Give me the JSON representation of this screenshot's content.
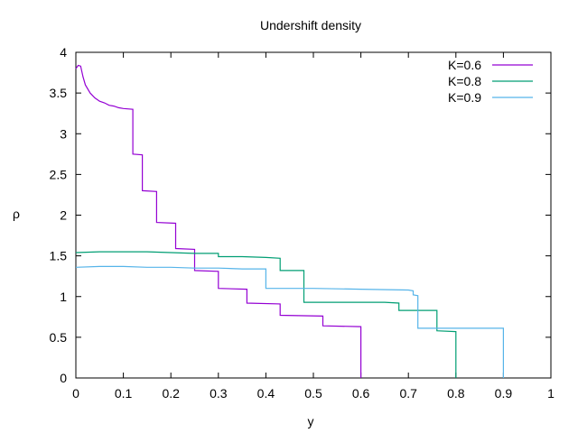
{
  "chart_data": {
    "type": "line",
    "title": "Undershift density",
    "xlabel": "y",
    "ylabel": "ρ",
    "xlim": [
      0,
      1
    ],
    "ylim": [
      0,
      4
    ],
    "xticks": [
      "0",
      "0.1",
      "0.2",
      "0.3",
      "0.4",
      "0.5",
      "0.6",
      "0.7",
      "0.8",
      "0.9",
      "1"
    ],
    "yticks": [
      "0",
      "0.5",
      "1",
      "1.5",
      "2",
      "2.5",
      "3",
      "3.5",
      "4"
    ],
    "grid": false,
    "legend_position": "top-right",
    "series": [
      {
        "name": "K=0.6",
        "color": "#9400d3",
        "points": [
          [
            0,
            3.8
          ],
          [
            0.005,
            3.84
          ],
          [
            0.01,
            3.83
          ],
          [
            0.015,
            3.7
          ],
          [
            0.02,
            3.6
          ],
          [
            0.03,
            3.5
          ],
          [
            0.04,
            3.44
          ],
          [
            0.05,
            3.4
          ],
          [
            0.06,
            3.38
          ],
          [
            0.07,
            3.35
          ],
          [
            0.08,
            3.34
          ],
          [
            0.09,
            3.32
          ],
          [
            0.1,
            3.31
          ],
          [
            0.12,
            3.3
          ],
          [
            0.12,
            2.75
          ],
          [
            0.14,
            2.74
          ],
          [
            0.14,
            2.3
          ],
          [
            0.17,
            2.29
          ],
          [
            0.17,
            1.91
          ],
          [
            0.21,
            1.9
          ],
          [
            0.21,
            1.59
          ],
          [
            0.25,
            1.58
          ],
          [
            0.25,
            1.32
          ],
          [
            0.3,
            1.31
          ],
          [
            0.3,
            1.1
          ],
          [
            0.36,
            1.09
          ],
          [
            0.36,
            0.92
          ],
          [
            0.43,
            0.91
          ],
          [
            0.43,
            0.77
          ],
          [
            0.52,
            0.76
          ],
          [
            0.52,
            0.64
          ],
          [
            0.6,
            0.63
          ],
          [
            0.6,
            0
          ]
        ]
      },
      {
        "name": "K=0.8",
        "color": "#009e73",
        "points": [
          [
            0,
            1.54
          ],
          [
            0.05,
            1.55
          ],
          [
            0.1,
            1.55
          ],
          [
            0.15,
            1.55
          ],
          [
            0.2,
            1.54
          ],
          [
            0.25,
            1.53
          ],
          [
            0.3,
            1.53
          ],
          [
            0.3,
            1.49
          ],
          [
            0.35,
            1.49
          ],
          [
            0.4,
            1.48
          ],
          [
            0.43,
            1.47
          ],
          [
            0.43,
            1.32
          ],
          [
            0.48,
            1.32
          ],
          [
            0.48,
            0.93
          ],
          [
            0.55,
            0.93
          ],
          [
            0.6,
            0.93
          ],
          [
            0.65,
            0.93
          ],
          [
            0.68,
            0.92
          ],
          [
            0.68,
            0.83
          ],
          [
            0.76,
            0.83
          ],
          [
            0.76,
            0.58
          ],
          [
            0.8,
            0.57
          ],
          [
            0.8,
            0
          ]
        ]
      },
      {
        "name": "K=0.9",
        "color": "#56b4e9",
        "points": [
          [
            0,
            1.36
          ],
          [
            0.05,
            1.37
          ],
          [
            0.1,
            1.37
          ],
          [
            0.15,
            1.36
          ],
          [
            0.2,
            1.36
          ],
          [
            0.25,
            1.35
          ],
          [
            0.3,
            1.35
          ],
          [
            0.35,
            1.34
          ],
          [
            0.4,
            1.34
          ],
          [
            0.4,
            1.1
          ],
          [
            0.5,
            1.1
          ],
          [
            0.6,
            1.09
          ],
          [
            0.7,
            1.08
          ],
          [
            0.71,
            1.07
          ],
          [
            0.71,
            1.02
          ],
          [
            0.72,
            1.01
          ],
          [
            0.72,
            0.61
          ],
          [
            0.8,
            0.61
          ],
          [
            0.9,
            0.61
          ],
          [
            0.9,
            0
          ]
        ]
      }
    ]
  }
}
